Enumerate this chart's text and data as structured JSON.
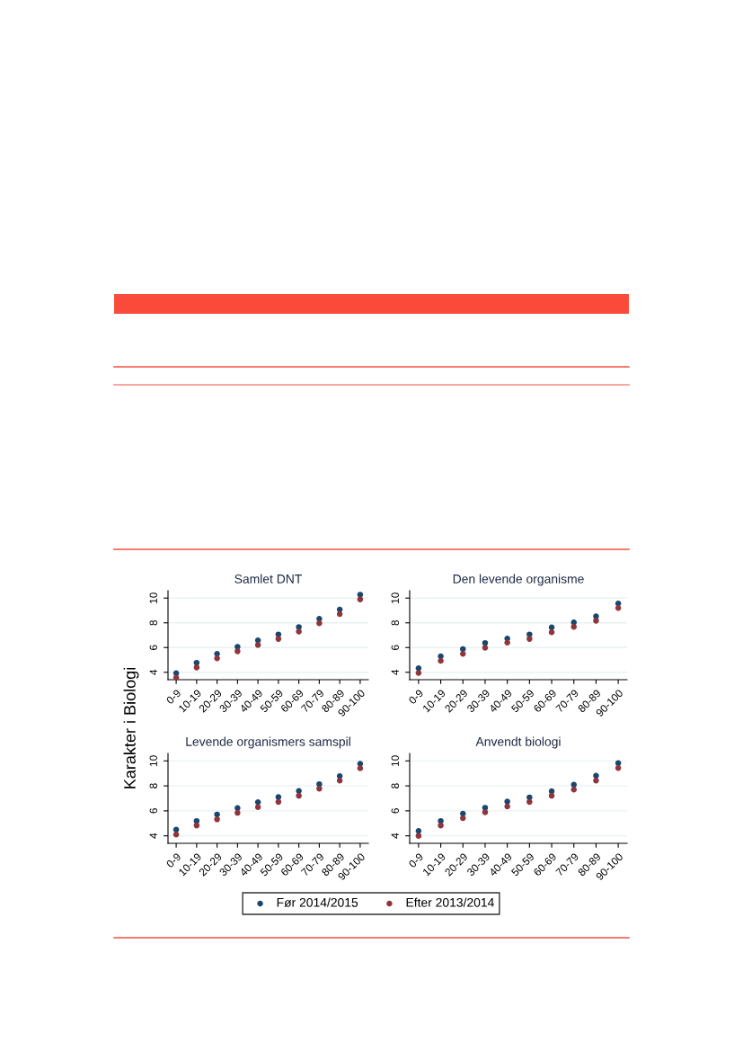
{
  "chart_data": [
    {
      "type": "scatter",
      "title": "Samlet DNT",
      "ylabel": "Karakter i Biologi",
      "legend": "bottom",
      "marker": "circle",
      "grid": "y",
      "ylim": [
        3.4,
        10.6
      ],
      "yticks": [
        4,
        6,
        8,
        10
      ],
      "categories": [
        "0-9",
        "10-19",
        "20-29",
        "30-39",
        "40-49",
        "50-59",
        "60-69",
        "70-79",
        "80-89",
        "90-100"
      ],
      "series": [
        {
          "name": "Før 2014/2015",
          "color": "#1a476f",
          "values": [
            3.92,
            4.77,
            5.49,
            6.06,
            6.58,
            7.06,
            7.66,
            8.33,
            9.07,
            10.28
          ]
        },
        {
          "name": "Efter 2013/2014",
          "color": "#90353b",
          "values": [
            3.56,
            4.39,
            5.13,
            5.7,
            6.21,
            6.7,
            7.29,
            7.97,
            8.71,
            9.9
          ]
        }
      ]
    },
    {
      "type": "scatter",
      "title": "Den levende organisme",
      "marker": "circle",
      "grid": "y",
      "ylim": [
        3.4,
        10.6
      ],
      "yticks": [
        4,
        6,
        8,
        10
      ],
      "categories": [
        "0-9",
        "10-19",
        "20-29",
        "30-39",
        "40-49",
        "50-59",
        "60-69",
        "70-79",
        "80-89",
        "90-100"
      ],
      "series": [
        {
          "color": "#1a476f",
          "values": [
            4.33,
            5.29,
            5.88,
            6.37,
            6.73,
            7.06,
            7.63,
            8.04,
            8.53,
            9.56
          ]
        },
        {
          "color": "#90353b",
          "values": [
            3.95,
            4.93,
            5.49,
            5.98,
            6.4,
            6.7,
            7.24,
            7.68,
            8.17,
            9.2
          ]
        }
      ]
    },
    {
      "type": "scatter",
      "title": "Levende organismers samspil",
      "marker": "circle",
      "grid": "y",
      "ylim": [
        3.4,
        10.6
      ],
      "yticks": [
        4,
        6,
        8,
        10
      ],
      "categories": [
        "0-9",
        "10-19",
        "20-29",
        "30-39",
        "40-49",
        "50-59",
        "60-69",
        "70-79",
        "80-89",
        "90-100"
      ],
      "series": [
        {
          "color": "#1a476f",
          "values": [
            4.49,
            5.19,
            5.71,
            6.22,
            6.69,
            7.1,
            7.59,
            8.14,
            8.78,
            9.77
          ]
        },
        {
          "color": "#90353b",
          "values": [
            4.1,
            4.83,
            5.32,
            5.84,
            6.3,
            6.72,
            7.21,
            7.78,
            8.42,
            9.41
          ]
        }
      ]
    },
    {
      "type": "scatter",
      "title": "Anvendt biologi",
      "marker": "circle",
      "grid": "y",
      "ylim": [
        3.4,
        10.6
      ],
      "yticks": [
        4,
        6,
        8,
        10
      ],
      "categories": [
        "0-9",
        "10-19",
        "20-29",
        "30-39",
        "40-49",
        "50-59",
        "60-69",
        "70-79",
        "80-89",
        "90-100"
      ],
      "series": [
        {
          "color": "#1a476f",
          "values": [
            4.39,
            5.19,
            5.78,
            6.25,
            6.74,
            7.08,
            7.57,
            8.09,
            8.81,
            9.82
          ]
        },
        {
          "color": "#90353b",
          "values": [
            4.0,
            4.83,
            5.42,
            5.89,
            6.35,
            6.72,
            7.21,
            7.7,
            8.42,
            9.43
          ]
        }
      ]
    }
  ]
}
